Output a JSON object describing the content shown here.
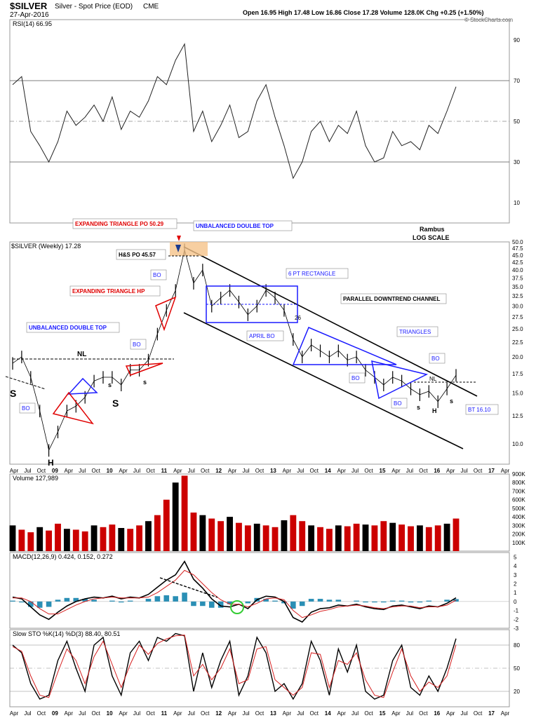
{
  "header": {
    "symbol": "$SILVER",
    "name": "Silver - Spot Price (EOD)",
    "exchange": "CME",
    "date": "27-Apr-2016",
    "ohlc": "Open 16.95  High 17.48  Low 16.86  Close 17.28  Volume 128.0K  Chg +0.25 (+1.50%)",
    "credit": "© StockCharts.com"
  },
  "colors": {
    "up": "#000000",
    "down": "#cc0000",
    "rsi_over": "#4f7f4f",
    "rsi_under": "#8b5a5a",
    "macd_hist": "#2a8fb5",
    "macd_signal": "#d62020",
    "blue_ann": "#1a1aff",
    "red_ann": "#e00000",
    "highlight": "#f5c38a"
  },
  "x_axis_labels": [
    "Apr",
    "Jul",
    "Oct",
    "09",
    "Apr",
    "Jul",
    "Oct",
    "10",
    "Apr",
    "Jul",
    "Oct",
    "11",
    "Apr",
    "Jul",
    "Oct",
    "12",
    "Apr",
    "Jul",
    "Oct",
    "13",
    "Apr",
    "Jul",
    "Oct",
    "14",
    "Apr",
    "Jul",
    "Oct",
    "15",
    "Apr",
    "Jul",
    "Oct",
    "16",
    "Apr",
    "Jul",
    "Oct",
    "17",
    "Apr"
  ],
  "chart_data": [
    {
      "type": "line",
      "panel": "rsi",
      "label": "RSI(14) 66.95",
      "yticks": [
        90,
        70,
        50,
        30,
        10
      ],
      "ylim": [
        0,
        100
      ],
      "x": [
        "2008-02",
        "2008-04",
        "2008-06",
        "2008-08",
        "2008-10",
        "2008-12",
        "2009-02",
        "2009-04",
        "2009-06",
        "2009-08",
        "2009-10",
        "2009-12",
        "2010-02",
        "2010-04",
        "2010-06",
        "2010-08",
        "2010-10",
        "2010-12",
        "2011-02",
        "2011-04",
        "2011-06",
        "2011-08",
        "2011-10",
        "2011-12",
        "2012-02",
        "2012-04",
        "2012-06",
        "2012-08",
        "2012-10",
        "2012-12",
        "2013-02",
        "2013-04",
        "2013-06",
        "2013-08",
        "2013-10",
        "2013-12",
        "2014-02",
        "2014-04",
        "2014-06",
        "2014-08",
        "2014-10",
        "2014-12",
        "2015-02",
        "2015-04",
        "2015-06",
        "2015-08",
        "2015-10",
        "2015-12",
        "2016-02",
        "2016-04"
      ],
      "values": [
        68,
        72,
        45,
        38,
        30,
        40,
        55,
        48,
        52,
        58,
        50,
        62,
        46,
        55,
        52,
        60,
        72,
        68,
        80,
        88,
        45,
        55,
        40,
        48,
        58,
        42,
        45,
        60,
        68,
        52,
        38,
        22,
        30,
        45,
        50,
        40,
        48,
        44,
        55,
        38,
        30,
        32,
        45,
        38,
        40,
        36,
        48,
        44,
        55,
        67
      ]
    },
    {
      "type": "line",
      "panel": "price",
      "label": "$SILVER (Weekly) 17.28",
      "scale": "log",
      "yticks": [
        50.0,
        47.5,
        45.0,
        42.5,
        40.0,
        37.5,
        35.0,
        32.5,
        30.0,
        27.5,
        25.0,
        22.5,
        20.0,
        17.5,
        15.0,
        12.5,
        10.0
      ],
      "ylim": [
        8.5,
        50
      ],
      "x": [
        "2008-02",
        "2008-04",
        "2008-06",
        "2008-08",
        "2008-10",
        "2008-12",
        "2009-02",
        "2009-04",
        "2009-06",
        "2009-08",
        "2009-10",
        "2009-12",
        "2010-02",
        "2010-04",
        "2010-06",
        "2010-08",
        "2010-10",
        "2010-12",
        "2011-02",
        "2011-04",
        "2011-06",
        "2011-08",
        "2011-10",
        "2011-12",
        "2012-02",
        "2012-04",
        "2012-06",
        "2012-08",
        "2012-10",
        "2012-12",
        "2013-02",
        "2013-04",
        "2013-06",
        "2013-08",
        "2013-10",
        "2013-12",
        "2014-02",
        "2014-04",
        "2014-06",
        "2014-08",
        "2014-10",
        "2014-12",
        "2015-02",
        "2015-04",
        "2015-06",
        "2015-08",
        "2015-10",
        "2015-12",
        "2016-02",
        "2016-04"
      ],
      "values": [
        19,
        20,
        17,
        13,
        9.5,
        11,
        13,
        13.5,
        14.5,
        16.5,
        17,
        17,
        16,
        18,
        18,
        19.5,
        24,
        29,
        34,
        47,
        36,
        40,
        30,
        32,
        34,
        31,
        28,
        30,
        34,
        32,
        29,
        23,
        20,
        22,
        21,
        20,
        21,
        19.5,
        20,
        18,
        17,
        16,
        17,
        16.5,
        15.5,
        14.8,
        15.2,
        14,
        15.5,
        17.28
      ]
    },
    {
      "type": "bar",
      "panel": "volume",
      "label": "Volume 127,989",
      "yticks": [
        "900K",
        "800K",
        "700K",
        "600K",
        "500K",
        "400K",
        "300K",
        "200K",
        "100K"
      ],
      "ylim": [
        0,
        900000
      ],
      "values": [
        300000,
        250000,
        220000,
        280000,
        240000,
        320000,
        260000,
        250000,
        230000,
        300000,
        280000,
        310000,
        270000,
        260000,
        300000,
        350000,
        420000,
        600000,
        800000,
        880000,
        450000,
        420000,
        380000,
        350000,
        400000,
        330000,
        300000,
        320000,
        300000,
        280000,
        360000,
        420000,
        350000,
        300000,
        280000,
        260000,
        300000,
        290000,
        320000,
        310000,
        300000,
        350000,
        330000,
        310000,
        290000,
        300000,
        280000,
        300000,
        320000,
        380000
      ]
    },
    {
      "type": "line",
      "panel": "macd",
      "label": "MACD(12,26,9) 0.424, 0.152, 0.272",
      "yticks": [
        5,
        4,
        3,
        2,
        1,
        0,
        -1,
        -2,
        -3
      ],
      "ylim": [
        -3,
        5.5
      ],
      "series": [
        {
          "name": "MACD",
          "values": [
            0.5,
            0.3,
            -0.6,
            -1.5,
            -2.0,
            -1.2,
            -0.5,
            0.0,
            0.3,
            0.5,
            0.4,
            0.6,
            0.3,
            0.5,
            0.4,
            0.8,
            1.6,
            2.4,
            3.0,
            4.5,
            2.5,
            1.5,
            0.3,
            -0.5,
            -0.6,
            -0.3,
            -0.8,
            0.2,
            0.6,
            0.5,
            0.0,
            -1.8,
            -2.3,
            -1.2,
            -0.8,
            -0.7,
            -0.4,
            -0.5,
            -0.3,
            -0.6,
            -0.8,
            -0.9,
            -0.5,
            -0.4,
            -0.6,
            -0.8,
            -0.5,
            -0.6,
            -0.2,
            0.42
          ]
        },
        {
          "name": "Signal",
          "values": [
            0.4,
            0.4,
            0.0,
            -0.8,
            -1.4,
            -1.4,
            -0.9,
            -0.4,
            0.0,
            0.3,
            0.4,
            0.5,
            0.4,
            0.4,
            0.4,
            0.5,
            1.0,
            1.7,
            2.4,
            3.5,
            3.0,
            2.0,
            1.0,
            0.2,
            -0.3,
            -0.3,
            -0.6,
            -0.2,
            0.3,
            0.4,
            0.2,
            -1.0,
            -1.8,
            -1.5,
            -1.1,
            -0.9,
            -0.6,
            -0.5,
            -0.4,
            -0.5,
            -0.7,
            -0.8,
            -0.6,
            -0.5,
            -0.5,
            -0.7,
            -0.6,
            -0.6,
            -0.4,
            0.15
          ]
        }
      ],
      "histogram": [
        0.1,
        -0.1,
        -0.6,
        -0.7,
        -0.6,
        0.2,
        0.4,
        0.4,
        0.3,
        0.2,
        0.0,
        0.1,
        -0.1,
        0.1,
        0.0,
        0.3,
        0.6,
        0.7,
        0.6,
        1.0,
        -0.5,
        -0.5,
        -0.7,
        -0.7,
        -0.3,
        0.0,
        -0.2,
        0.4,
        0.3,
        0.1,
        -0.2,
        -0.8,
        -0.5,
        0.3,
        0.3,
        0.2,
        0.2,
        0.0,
        0.1,
        -0.1,
        -0.1,
        -0.1,
        0.1,
        0.1,
        -0.1,
        -0.1,
        0.1,
        0.0,
        0.2,
        0.27
      ]
    },
    {
      "type": "line",
      "panel": "sto",
      "label": "Slow STO %K(14) %D(3) 88.40, 80.51",
      "yticks": [
        80,
        50,
        20
      ],
      "ylim": [
        0,
        100
      ],
      "series": [
        {
          "name": "%K",
          "values": [
            80,
            70,
            30,
            10,
            15,
            60,
            85,
            50,
            20,
            80,
            90,
            40,
            15,
            70,
            85,
            60,
            90,
            85,
            95,
            92,
            20,
            70,
            25,
            60,
            85,
            15,
            40,
            90,
            70,
            20,
            30,
            10,
            30,
            85,
            60,
            15,
            75,
            45,
            80,
            20,
            10,
            15,
            60,
            80,
            25,
            15,
            40,
            20,
            50,
            88.4
          ]
        },
        {
          "name": "%D",
          "values": [
            78,
            72,
            40,
            15,
            12,
            45,
            75,
            60,
            30,
            65,
            85,
            55,
            25,
            55,
            80,
            68,
            82,
            88,
            92,
            93,
            40,
            55,
            35,
            50,
            75,
            30,
            35,
            75,
            78,
            35,
            25,
            15,
            25,
            70,
            68,
            25,
            60,
            55,
            70,
            35,
            15,
            12,
            45,
            75,
            40,
            20,
            32,
            25,
            40,
            80.51
          ]
        }
      ]
    }
  ],
  "annotations": {
    "rambus": "Rambus",
    "log_scale": "LOG SCALE",
    "exp_tri_po": "EXPANDING TRIANGLE PO 50.29",
    "unbalanced_top_1": "UNBALANCED DOULBE TOP",
    "hs_po": "H&S PO 45.57",
    "exp_tri_hp": "EXPANDING TRIANGLE HP",
    "unbalanced_top_2": "UNBALANCED DOUBLE TOP",
    "six_pt_rect": "6 PT RECTANGLE",
    "parallel_channel": "PARALLEL DOWNTREND CHANNEL",
    "april_bo": "APRIL BO",
    "triangles": "TRIANGLES",
    "bt": "BT 16.10",
    "nl": "NL",
    "bo": "BO",
    "s": "S",
    "s_small": "s",
    "h": "H",
    "h_small": "H",
    "num26": "26"
  }
}
